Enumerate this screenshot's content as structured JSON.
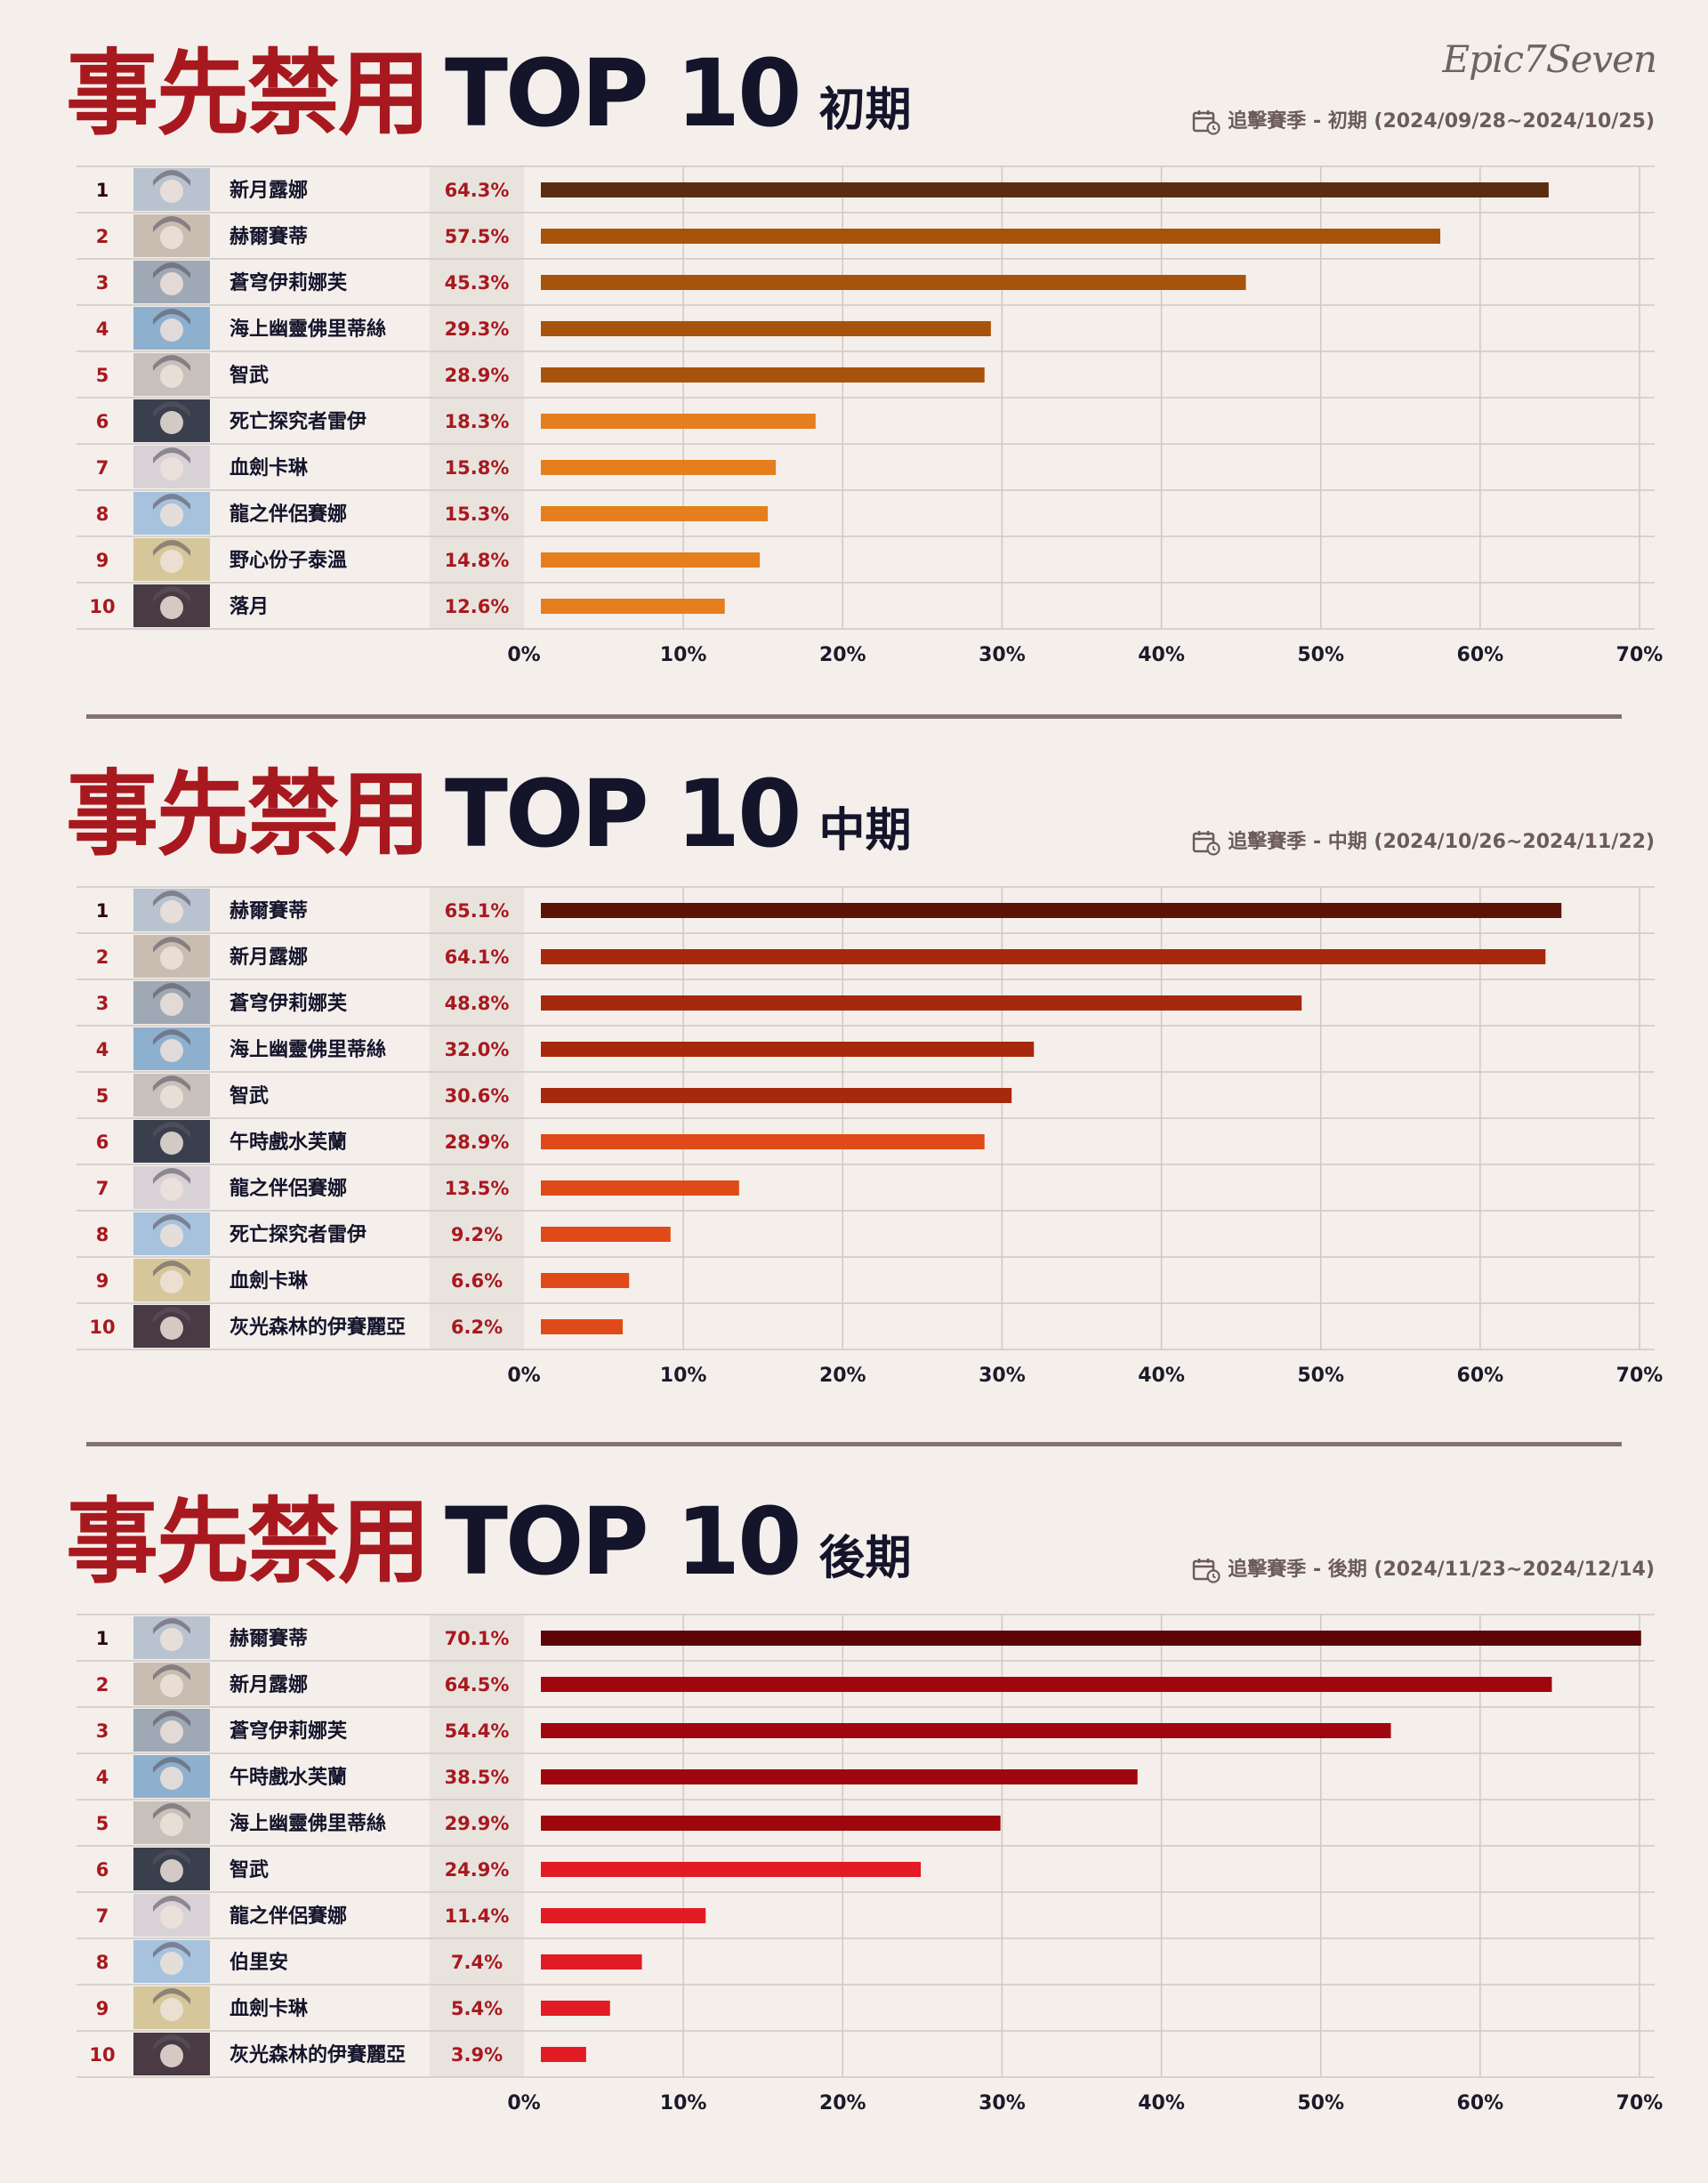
{
  "logo": "Epic7Seven",
  "sections": [
    {
      "title_red": "事先禁用",
      "title_dark": "TOP 10",
      "phase": "初期",
      "season_label": "追擊賽季 - 初期 (2024/09/28~2024/10/25)"
    },
    {
      "title_red": "事先禁用",
      "title_dark": "TOP 10",
      "phase": "中期",
      "season_label": "追擊賽季 - 中期 (2024/10/26~2024/11/22)"
    },
    {
      "title_red": "事先禁用",
      "title_dark": "TOP 10",
      "phase": "後期",
      "season_label": "追擊賽季 - 後期 (2024/11/23~2024/12/14)"
    }
  ],
  "chart_data": [
    {
      "type": "bar",
      "orientation": "horizontal",
      "ranks": [
        "1",
        "2",
        "3",
        "4",
        "5",
        "6",
        "7",
        "8",
        "9",
        "10"
      ],
      "categories": [
        "新月露娜",
        "赫爾賽蒂",
        "蒼穹伊莉娜芙",
        "海上幽靈佛里蒂絲",
        "智武",
        "死亡探究者雷伊",
        "血劍卡琳",
        "龍之伴侶賽娜",
        "野心份子泰溫",
        "落月"
      ],
      "values": [
        64.3,
        57.5,
        45.3,
        29.3,
        28.9,
        18.3,
        15.8,
        15.3,
        14.8,
        12.6
      ],
      "value_labels": [
        "64.3%",
        "57.5%",
        "45.3%",
        "29.3%",
        "28.9%",
        "18.3%",
        "15.8%",
        "15.3%",
        "14.8%",
        "12.6%"
      ],
      "colors": [
        "#5a2d10",
        "#a8530c",
        "#a8530c",
        "#a8530c",
        "#a8530c",
        "#e57e1c",
        "#e57e1c",
        "#e57e1c",
        "#e57e1c",
        "#e57e1c"
      ],
      "xlim": [
        0,
        70
      ],
      "xticks": [
        "0%",
        "10%",
        "20%",
        "30%",
        "40%",
        "50%",
        "60%",
        "70%"
      ],
      "grid": true
    },
    {
      "type": "bar",
      "orientation": "horizontal",
      "ranks": [
        "1",
        "2",
        "3",
        "4",
        "5",
        "6",
        "7",
        "8",
        "9",
        "10"
      ],
      "categories": [
        "赫爾賽蒂",
        "新月露娜",
        "蒼穹伊莉娜芙",
        "海上幽靈佛里蒂絲",
        "智武",
        "午時戲水芙蘭",
        "龍之伴侶賽娜",
        "死亡探究者雷伊",
        "血劍卡琳",
        "灰光森林的伊賽麗亞"
      ],
      "values": [
        65.1,
        64.1,
        48.8,
        32.0,
        30.6,
        28.9,
        13.5,
        9.2,
        6.6,
        6.2
      ],
      "value_labels": [
        "65.1%",
        "64.1%",
        "48.8%",
        "32.0%",
        "30.6%",
        "28.9%",
        "13.5%",
        "9.2%",
        "6.6%",
        "6.2%"
      ],
      "colors": [
        "#5c1306",
        "#a6290d",
        "#a6290d",
        "#a6290d",
        "#a6290d",
        "#e04a18",
        "#e04a18",
        "#e04a18",
        "#e04a18",
        "#e04a18"
      ],
      "xlim": [
        0,
        70
      ],
      "xticks": [
        "0%",
        "10%",
        "20%",
        "30%",
        "40%",
        "50%",
        "60%",
        "70%"
      ],
      "grid": true
    },
    {
      "type": "bar",
      "orientation": "horizontal",
      "ranks": [
        "1",
        "2",
        "3",
        "4",
        "5",
        "6",
        "7",
        "8",
        "9",
        "10"
      ],
      "categories": [
        "赫爾賽蒂",
        "新月露娜",
        "蒼穹伊莉娜芙",
        "午時戲水芙蘭",
        "海上幽靈佛里蒂絲",
        "智武",
        "龍之伴侶賽娜",
        "伯里安",
        "血劍卡琳",
        "灰光森林的伊賽麗亞"
      ],
      "values": [
        70.1,
        64.5,
        54.4,
        38.5,
        29.9,
        24.9,
        11.4,
        7.4,
        5.4,
        3.9
      ],
      "value_labels": [
        "70.1%",
        "64.5%",
        "54.4%",
        "38.5%",
        "29.9%",
        "24.9%",
        "11.4%",
        "7.4%",
        "5.4%",
        "3.9%"
      ],
      "colors": [
        "#5e0407",
        "#a0060d",
        "#a0060d",
        "#a0060d",
        "#a0060d",
        "#e21b24",
        "#e21b24",
        "#e21b24",
        "#e21b24",
        "#e21b24"
      ],
      "xlim": [
        0,
        70
      ],
      "xticks": [
        "0%",
        "10%",
        "20%",
        "30%",
        "40%",
        "50%",
        "60%",
        "70%"
      ],
      "grid": true
    }
  ]
}
